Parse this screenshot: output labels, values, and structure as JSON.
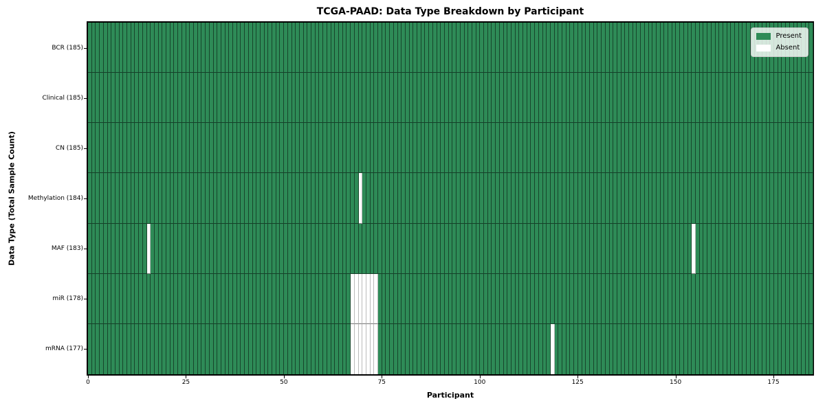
{
  "chart_data": {
    "type": "heatmap",
    "title": "TCGA-PAAD: Data Type Breakdown by Participant",
    "xlabel": "Participant",
    "ylabel": "Data Type (Total Sample Count)",
    "n_participants": 185,
    "x_axis": {
      "min": 0,
      "max": 185,
      "ticks": [
        0,
        25,
        50,
        75,
        100,
        125,
        150,
        175
      ]
    },
    "rows": [
      {
        "label": "BCR (185)",
        "data_type": "BCR",
        "present_count": 185,
        "absent_participants": []
      },
      {
        "label": "Clinical (185)",
        "data_type": "Clinical",
        "present_count": 185,
        "absent_participants": []
      },
      {
        "label": "CN (185)",
        "data_type": "CN",
        "present_count": 185,
        "absent_participants": []
      },
      {
        "label": "Methylation (184)",
        "data_type": "Methylation",
        "present_count": 184,
        "absent_participants": [
          69
        ]
      },
      {
        "label": "MAF (183)",
        "data_type": "MAF",
        "present_count": 183,
        "absent_participants": [
          15,
          154
        ]
      },
      {
        "label": "miR (178)",
        "data_type": "miR",
        "present_count": 178,
        "absent_participants": [
          67,
          68,
          69,
          70,
          71,
          72,
          73
        ]
      },
      {
        "label": "mRNA (177)",
        "data_type": "mRNA",
        "present_count": 177,
        "absent_participants": [
          67,
          68,
          69,
          70,
          71,
          72,
          73,
          118
        ]
      }
    ],
    "legend": {
      "position": "upper-right",
      "entries": [
        {
          "label": "Present",
          "color": "#2e8b57"
        },
        {
          "label": "Absent",
          "color": "#ffffff"
        }
      ]
    }
  },
  "colors": {
    "present": "#2e8b57",
    "absent": "#ffffff",
    "background": "#ffffff"
  }
}
